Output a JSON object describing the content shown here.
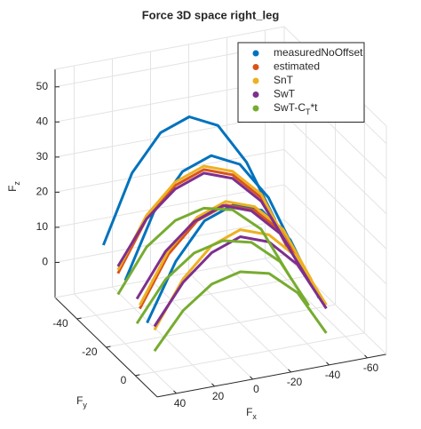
{
  "chart_data": {
    "type": "line3d",
    "title": "Force 3D space right_leg",
    "xlabel": "F_x",
    "ylabel": "F_y",
    "zlabel": "F_z",
    "xlim": [
      -70,
      50
    ],
    "ylim": [
      -55,
      15
    ],
    "zlim": [
      -10,
      55
    ],
    "xticks": [
      -60,
      -40,
      -20,
      0,
      20,
      40
    ],
    "yticks": [
      -40,
      -20,
      0
    ],
    "zticks": [
      0,
      10,
      20,
      30,
      40,
      50
    ],
    "grid": true,
    "legend": "northeast",
    "x": [
      40,
      25,
      10,
      -5,
      -20,
      -35,
      -50
    ],
    "series": [
      {
        "name": "measuredNoOffset",
        "color": "#0072BD",
        "curves": [
          {
            "y": [
              -35,
              -35,
              -35,
              -35,
              -35,
              -35,
              -35
            ],
            "z": [
              12,
              31,
              41,
              44,
              40,
              28,
              10
            ]
          },
          {
            "y": [
              -20,
              -20,
              -20,
              -20,
              -20,
              -20,
              -20
            ],
            "z": [
              8,
              26,
              36,
              39,
              35,
              24,
              6
            ]
          },
          {
            "y": [
              -5,
              -5,
              -5,
              -5,
              -5,
              -5,
              -5
            ],
            "z": [
              2,
              18,
              28,
              31,
              28,
              18,
              0
            ]
          }
        ]
      },
      {
        "name": "estimated",
        "color": "#D95319",
        "curves": [
          {
            "y": [
              -25,
              -25,
              -25,
              -25,
              -25,
              -25,
              -25
            ],
            "z": [
              8,
              22,
              30,
              33,
              30,
              22,
              5
            ]
          },
          {
            "y": [
              -10,
              -10,
              -10,
              -10,
              -10,
              -10,
              -10
            ],
            "z": [
              4,
              18,
              26,
              29,
              26,
              18,
              2
            ]
          }
        ]
      },
      {
        "name": "SnT",
        "color": "#EDB120",
        "curves": [
          {
            "y": [
              -25,
              -25,
              -25,
              -25,
              -25,
              -25,
              -25
            ],
            "z": [
              9,
              23,
              31,
              34,
              31,
              23,
              6
            ]
          },
          {
            "y": [
              -10,
              -10,
              -10,
              -10,
              -10,
              -10,
              -10
            ],
            "z": [
              5,
              19,
              27,
              30,
              27,
              19,
              3
            ]
          },
          {
            "y": [
              0,
              0,
              0,
              0,
              0,
              0,
              0
            ],
            "z": [
              2,
              15,
              23,
              26,
              23,
              15,
              0
            ]
          }
        ]
      },
      {
        "name": "SwT",
        "color": "#7E2F8E",
        "curves": [
          {
            "y": [
              -25,
              -25,
              -25,
              -25,
              -25,
              -25,
              -25
            ],
            "z": [
              10,
              22,
              29,
              32,
              29,
              21,
              6
            ]
          },
          {
            "y": [
              -12,
              -12,
              -12,
              -12,
              -12,
              -12,
              -12
            ],
            "z": [
              6,
              18,
              25,
              28,
              25,
              17,
              2
            ]
          },
          {
            "y": [
              0,
              0,
              0,
              0,
              0,
              0,
              0
            ],
            "z": [
              3,
              14,
              21,
              24,
              21,
              13,
              -1
            ]
          }
        ]
      },
      {
        "name": "SwT-C_T*t",
        "color": "#77AC30",
        "curves": [
          {
            "y": [
              -25,
              -25,
              -25,
              -25,
              -25,
              -25,
              -25
            ],
            "z": [
              2,
              14,
              20,
              22,
              20,
              13,
              -2
            ]
          },
          {
            "y": [
              -12,
              -12,
              -12,
              -12,
              -12,
              -12,
              -12
            ],
            "z": [
              -1,
              10,
              16,
              18,
              16,
              9,
              -5
            ]
          },
          {
            "y": [
              0,
              0,
              0,
              0,
              0,
              0,
              0
            ],
            "z": [
              -4,
              6,
              12,
              14,
              12,
              5,
              -8
            ]
          }
        ]
      }
    ]
  }
}
